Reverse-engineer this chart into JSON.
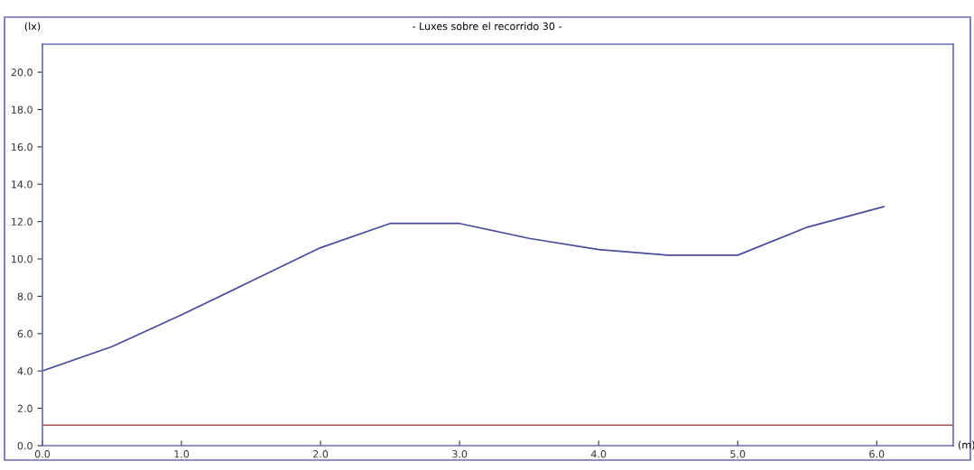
{
  "chart_data": {
    "type": "line",
    "title": "- Luxes sobre el recorrido 30 -",
    "ylabel": "(lx)",
    "xlabel": "(m)",
    "x": [
      0,
      0.5,
      1.0,
      1.5,
      2.0,
      2.5,
      3.0,
      3.5,
      4.0,
      4.5,
      5.0,
      5.5,
      6.05
    ],
    "series": [
      {
        "color": "#4a4a9a",
        "values": [
          4.0,
          5.3,
          7.0,
          8.8,
          10.6,
          11.9,
          11.9,
          11.1,
          10.5,
          10.2,
          10.2,
          11.7,
          12.8
        ]
      }
    ],
    "xlim": [
      0,
      6.55
    ],
    "ylim": [
      0,
      21.5
    ],
    "xticks": [
      {
        "value": 0,
        "label": "0.0"
      },
      {
        "value": 1,
        "label": "1.0"
      },
      {
        "value": 2,
        "label": "2.0"
      },
      {
        "value": 3,
        "label": "3.0"
      },
      {
        "value": 4,
        "label": "4.0"
      },
      {
        "value": 5,
        "label": "5.0"
      },
      {
        "value": 6,
        "label": "6.0"
      }
    ],
    "yticks": [
      {
        "value": 0,
        "label": "0.0"
      },
      {
        "value": 2,
        "label": "2.0"
      },
      {
        "value": 4,
        "label": "4.0"
      },
      {
        "value": 6,
        "label": "6.0"
      },
      {
        "value": 8,
        "label": "8.0"
      },
      {
        "value": 10,
        "label": "10.0"
      },
      {
        "value": 12,
        "label": "12.0"
      },
      {
        "value": 14,
        "label": "14.0"
      },
      {
        "value": 16,
        "label": "16.0"
      },
      {
        "value": 18,
        "label": "18.0"
      },
      {
        "value": 20,
        "label": "20.0"
      }
    ],
    "ref_lines": [
      {
        "axis": "y",
        "value": 1.1,
        "color": "#a05050"
      }
    ],
    "grid": false,
    "legend": false,
    "marker": "none",
    "line_style": "solid"
  }
}
